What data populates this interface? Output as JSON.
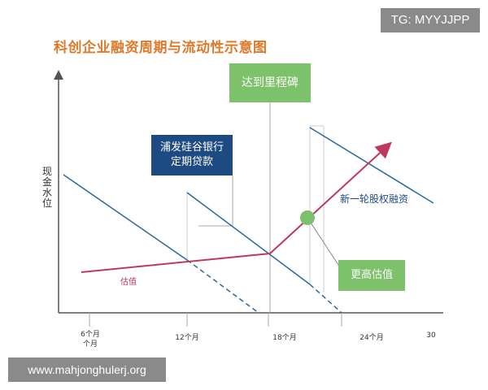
{
  "watermark_top": "TG: MYYJJPP",
  "watermark_bottom": "www.mahjonghulerj.org",
  "title": "科创企业融资周期与流动性示意图",
  "y_axis_label": "现金水位",
  "x_ticks": [
    "6个月 个月",
    "12个月",
    "18个月",
    "24个月",
    "30"
  ],
  "boxes": {
    "milestone": "达到里程碑",
    "spd_loan_line1": "浦发硅谷银行",
    "spd_loan_line2": "定期贷款",
    "higher_valuation": "更高估值"
  },
  "labels": {
    "valuation": "估值",
    "new_round": "新一轮股权融资"
  },
  "colors": {
    "title": "#e07a2a",
    "cash_line": "#2a6aa0",
    "valuation_line": "#c0385e",
    "green_box": "#7dc26a",
    "blue_box": "#1e4a82",
    "watermark_bg": "#8a8a8a"
  }
}
